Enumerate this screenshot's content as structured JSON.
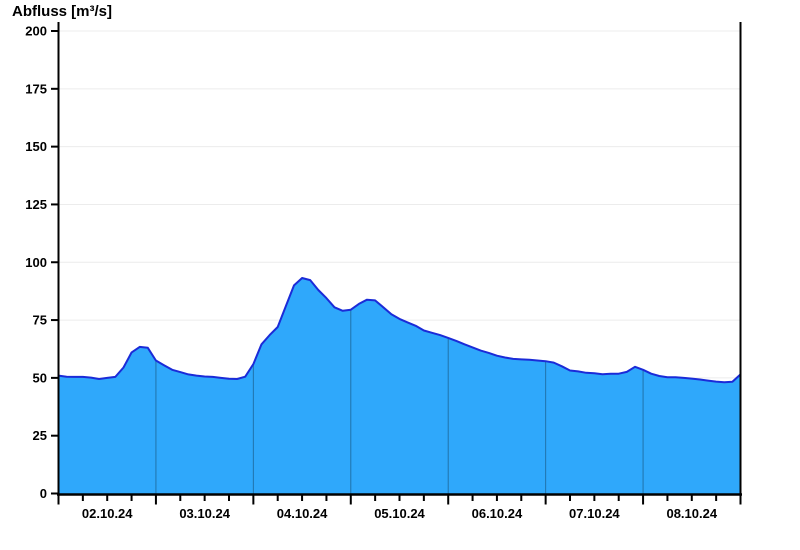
{
  "chart_data": {
    "type": "area",
    "title": "Abfluss [m³/s]",
    "ylabel": "Abfluss [m³/s]",
    "xlabel": "",
    "ylim": [
      0,
      200
    ],
    "y_ticks": [
      0,
      25,
      50,
      75,
      100,
      125,
      150,
      175,
      200
    ],
    "x_day_labels": [
      "02.10.24",
      "03.10.24",
      "04.10.24",
      "05.10.24",
      "06.10.24",
      "07.10.24",
      "08.10.24"
    ],
    "x_span_days": 7,
    "x_minor_tick_hours": 6,
    "sample_interval_hours": 2,
    "series_name": "Abfluss",
    "unit": "m³/s",
    "values": [
      51.0,
      50.5,
      50.4,
      50.4,
      50.1,
      49.5,
      50.0,
      50.4,
      54.5,
      61.0,
      63.4,
      63.0,
      57.5,
      55.5,
      53.5,
      52.5,
      51.5,
      51.0,
      50.6,
      50.4,
      50.0,
      49.6,
      49.5,
      50.5,
      56.0,
      64.5,
      68.5,
      72.0,
      81.0,
      90.0,
      93.2,
      92.3,
      88.0,
      84.5,
      80.5,
      79.0,
      79.5,
      82.0,
      83.8,
      83.5,
      80.5,
      77.5,
      75.5,
      74.0,
      72.5,
      70.5,
      69.5,
      68.5,
      67.3,
      66.0,
      64.5,
      63.2,
      61.8,
      60.8,
      59.6,
      58.8,
      58.2,
      58.0,
      57.8,
      57.5,
      57.2,
      56.6,
      55.0,
      53.2,
      52.8,
      52.2,
      52.0,
      51.6,
      51.8,
      51.8,
      52.6,
      54.8,
      53.5,
      51.8,
      50.8,
      50.3,
      50.3,
      50.0,
      49.7,
      49.3,
      48.8,
      48.4,
      48.1,
      48.3,
      51.5
    ],
    "grid": "horizontal-on, day-separators-inside-area",
    "legend": "none",
    "colors": {
      "fill": "#2FA8FB",
      "outline": "#1B2BD8",
      "grid": "#ECECEC",
      "day_line": "rgba(0,0,0,0.32)",
      "axis": "#000000",
      "background": "#FFFFFF"
    }
  }
}
